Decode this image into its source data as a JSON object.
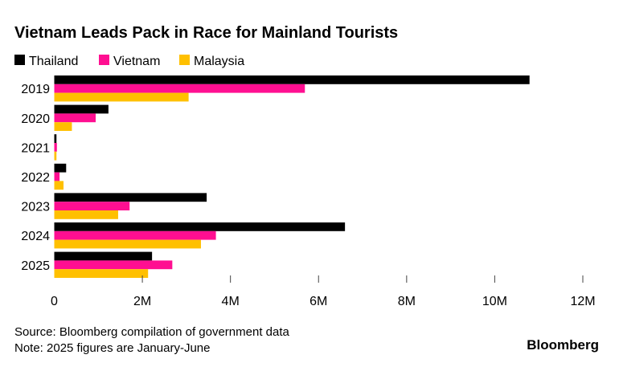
{
  "chart_data": {
    "type": "bar",
    "orientation": "horizontal",
    "title": "Vietnam Leads Pack in Race for Mainland Tourists",
    "categories": [
      "2019",
      "2020",
      "2021",
      "2022",
      "2023",
      "2024",
      "2025"
    ],
    "series": [
      {
        "name": "Thailand",
        "color": "#000000",
        "values": [
          10.79,
          1.23,
          0.05,
          0.27,
          3.46,
          6.6,
          2.22
        ]
      },
      {
        "name": "Vietnam",
        "color": "#ff0f91",
        "values": [
          5.69,
          0.94,
          0.06,
          0.12,
          1.71,
          3.67,
          2.68
        ]
      },
      {
        "name": "Malaysia",
        "color": "#ffc000",
        "values": [
          3.05,
          0.4,
          0.05,
          0.21,
          1.45,
          3.33,
          2.13
        ]
      }
    ],
    "value_unit": "millions",
    "xlim": [
      0,
      12
    ],
    "xticks": [
      0,
      2,
      4,
      6,
      8,
      10,
      12
    ],
    "xtick_labels": [
      "0",
      "2M",
      "4M",
      "6M",
      "8M",
      "10M",
      "12M"
    ],
    "legend_placement": "top-left",
    "grid": false
  },
  "footer": {
    "source": "Source: Bloomberg compilation of government data",
    "note": "Note: 2025 figures are January-June",
    "logo": "Bloomberg"
  }
}
